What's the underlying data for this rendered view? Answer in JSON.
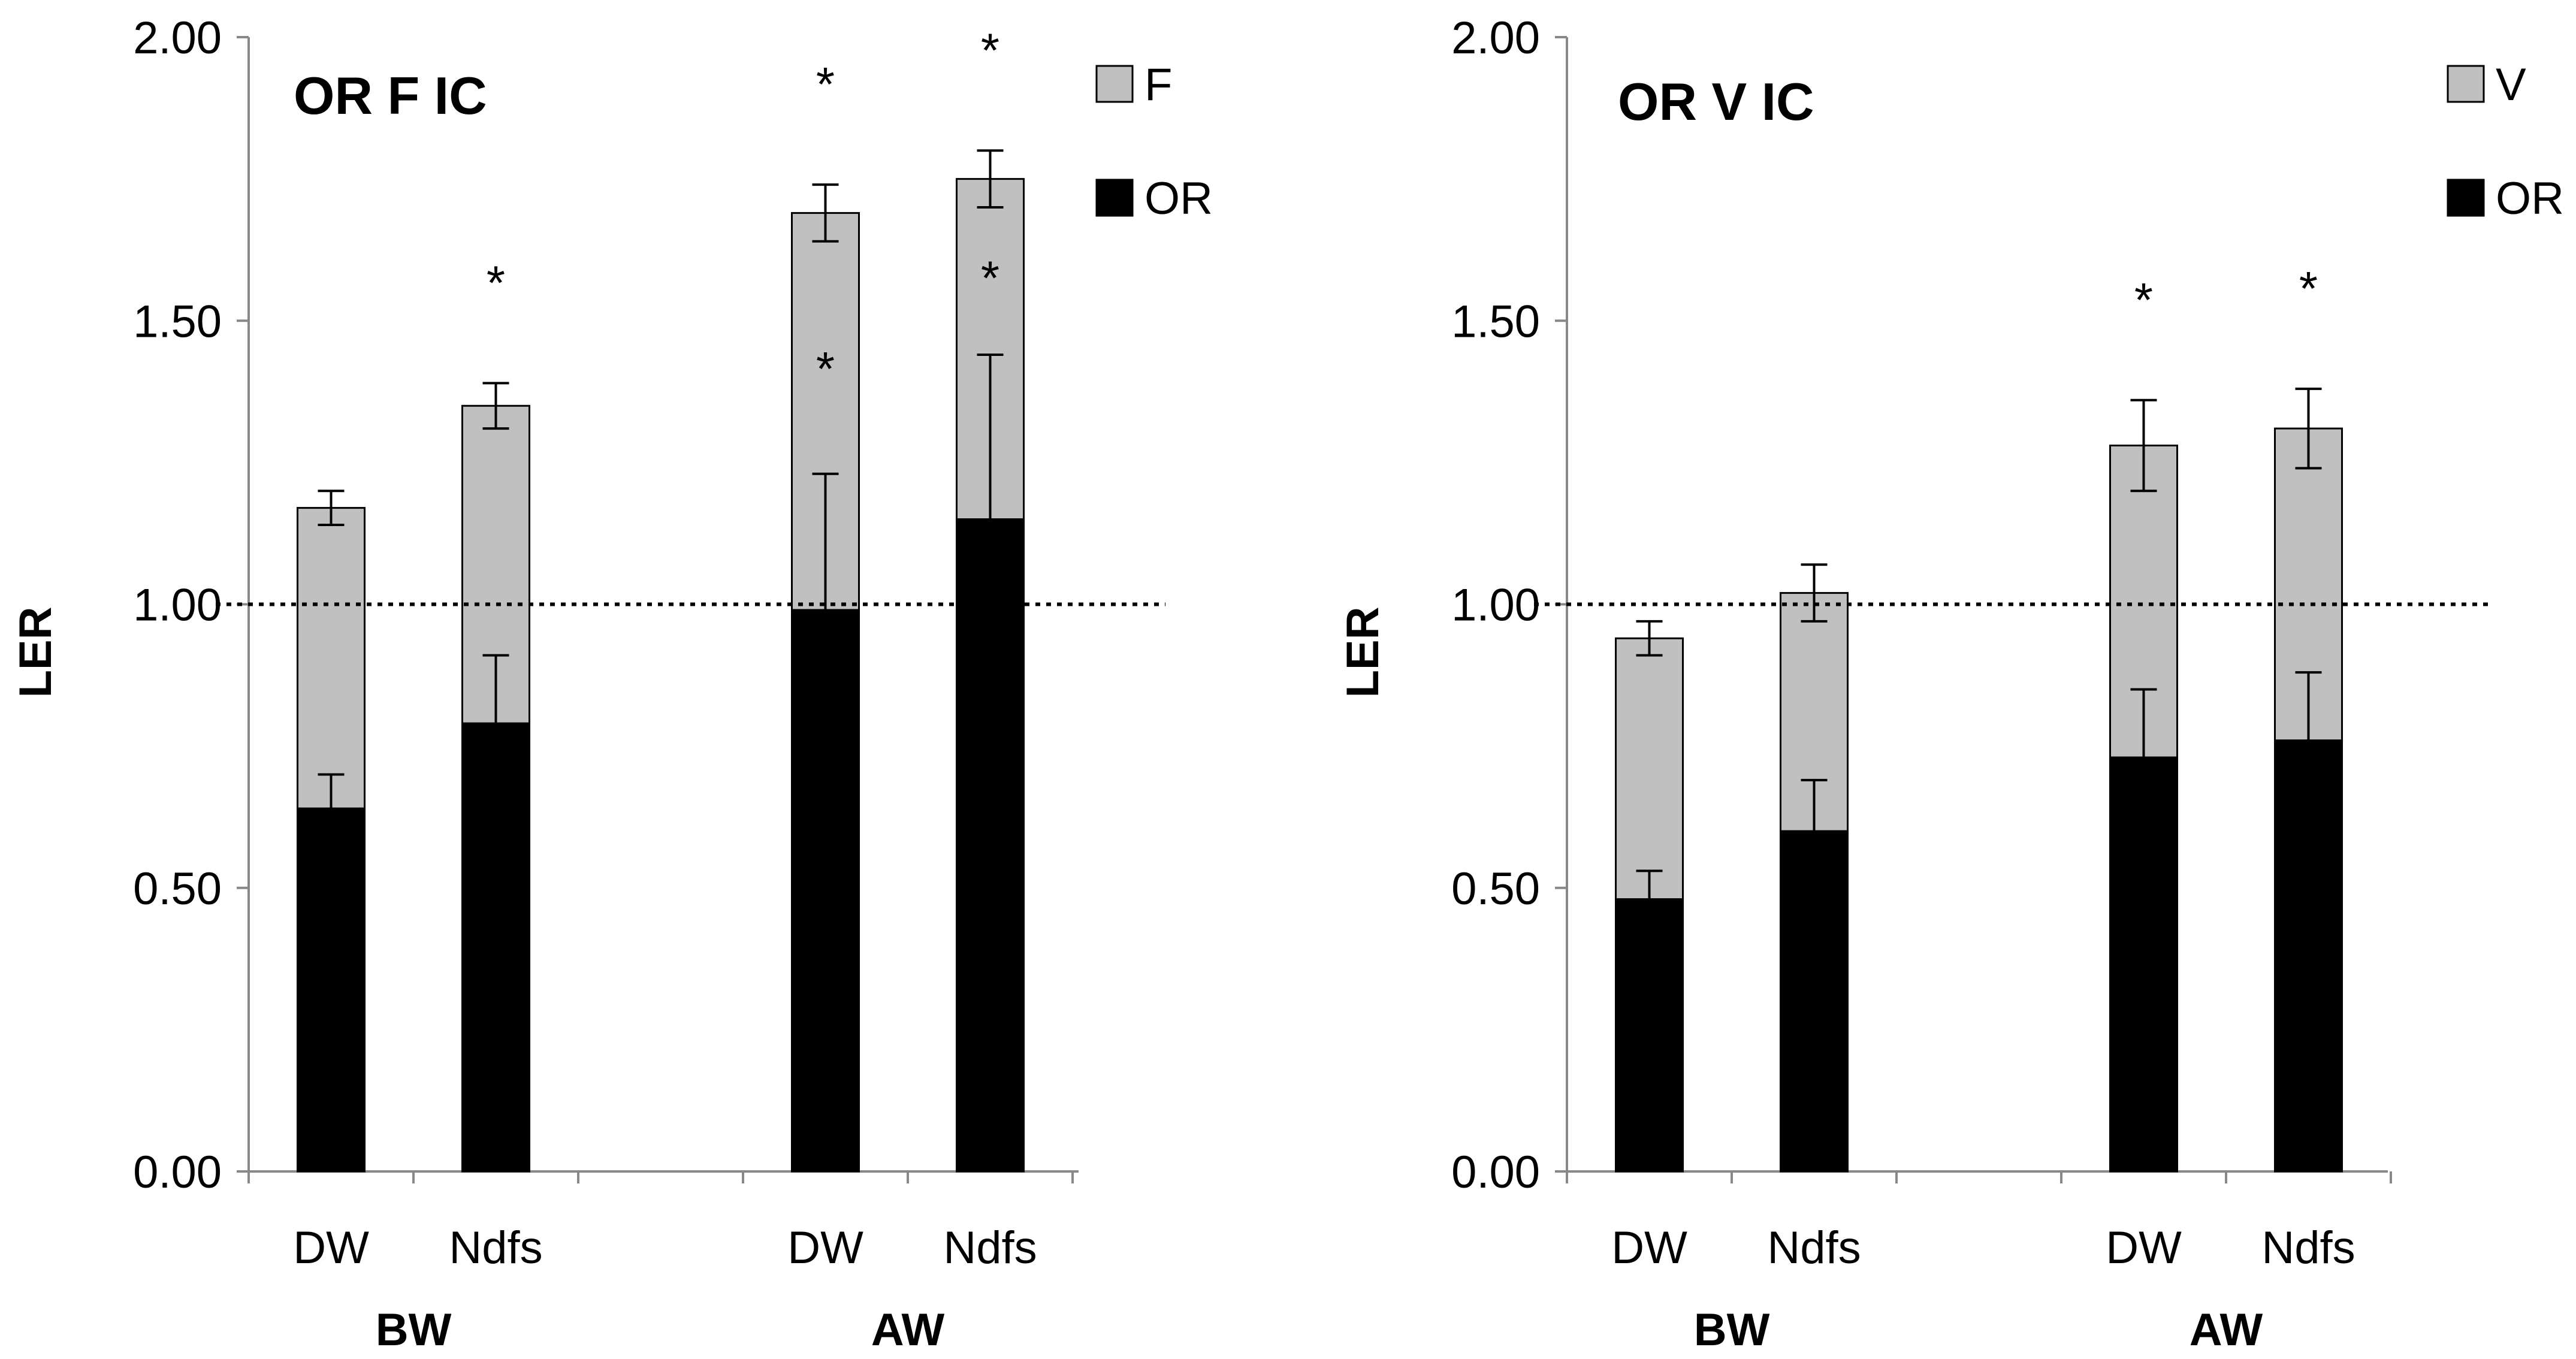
{
  "chart_data": [
    {
      "type": "bar",
      "stacked": true,
      "title": "OR F IC",
      "ylabel": "LER",
      "ylim": [
        0,
        2.0
      ],
      "yticks": [
        "0.00",
        "0.50",
        "1.00",
        "1.50",
        "2.00"
      ],
      "reference_line": 1.0,
      "categories": [
        "DW",
        "Ndfs",
        "DW",
        "Ndfs"
      ],
      "groups": [
        {
          "label": "BW",
          "categories": [
            "DW",
            "Ndfs"
          ]
        },
        {
          "label": "AW",
          "categories": [
            "DW",
            "Ndfs"
          ]
        }
      ],
      "series": [
        {
          "name": "OR",
          "color": "#000000",
          "values": [
            0.64,
            0.79,
            0.99,
            1.15
          ],
          "errors": [
            0.06,
            0.12,
            0.24,
            0.29
          ]
        },
        {
          "name": "F",
          "color": "#c0c0c0",
          "values": [
            0.53,
            0.56,
            0.7,
            0.6
          ],
          "errors": [
            0.03,
            0.04,
            0.05,
            0.05
          ]
        }
      ],
      "legend": [
        "F",
        "OR"
      ],
      "annotations": {
        "total_stars": [
          "",
          "*",
          "*",
          "*"
        ],
        "or_stars": [
          "",
          "",
          "*",
          "*"
        ]
      }
    },
    {
      "type": "bar",
      "stacked": true,
      "title": "OR V IC",
      "ylabel": "LER",
      "ylim": [
        0,
        2.0
      ],
      "yticks": [
        "0.00",
        "0.50",
        "1.00",
        "1.50",
        "2.00"
      ],
      "reference_line": 1.0,
      "categories": [
        "DW",
        "Ndfs",
        "DW",
        "Ndfs"
      ],
      "groups": [
        {
          "label": "BW",
          "categories": [
            "DW",
            "Ndfs"
          ]
        },
        {
          "label": "AW",
          "categories": [
            "DW",
            "Ndfs"
          ]
        }
      ],
      "series": [
        {
          "name": "OR",
          "color": "#000000",
          "values": [
            0.48,
            0.6,
            0.73,
            0.76
          ],
          "errors": [
            0.05,
            0.09,
            0.12,
            0.12
          ]
        },
        {
          "name": "V",
          "color": "#c0c0c0",
          "values": [
            0.46,
            0.42,
            0.55,
            0.55
          ],
          "errors": [
            0.03,
            0.05,
            0.08,
            0.07
          ]
        }
      ],
      "legend": [
        "V",
        "OR"
      ],
      "annotations": {
        "total_stars": [
          "",
          "",
          "*",
          "*"
        ],
        "or_stars": [
          "",
          "",
          "",
          ""
        ]
      }
    }
  ]
}
